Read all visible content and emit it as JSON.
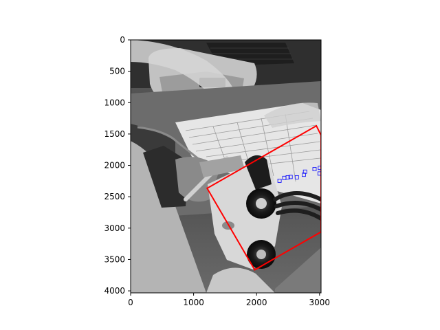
{
  "chart_data": {
    "type": "image",
    "title": "",
    "xlabel": "",
    "ylabel": "",
    "xlim": [
      0,
      3024
    ],
    "ylim": [
      4032,
      0
    ],
    "x_ticks": [
      0,
      1000,
      2000,
      3000
    ],
    "y_ticks": [
      0,
      500,
      1000,
      1500,
      2000,
      2500,
      3000,
      3500,
      4000
    ],
    "x_tick_labels": [
      "0",
      "1000",
      "2000",
      "3000"
    ],
    "y_tick_labels": [
      "0",
      "500",
      "1000",
      "1500",
      "2000",
      "2500",
      "3000",
      "3500",
      "4000"
    ],
    "background_image": "grayscale photo of a medical device with tubing and papers on a desk",
    "polygon": {
      "color": "#ff0000",
      "points": [
        [
          1215,
          2365
        ],
        [
          2950,
          1370
        ],
        [
          3024,
          1520
        ],
        [
          3024,
          3060
        ],
        [
          1970,
          3665
        ]
      ]
    },
    "markers": {
      "color": "#0000ff",
      "shape": "square-outline",
      "points": [
        [
          2365,
          2245
        ],
        [
          2440,
          2200
        ],
        [
          2495,
          2190
        ],
        [
          2540,
          2185
        ],
        [
          2640,
          2190
        ],
        [
          2750,
          2150
        ],
        [
          2770,
          2100
        ],
        [
          2920,
          2060
        ],
        [
          3000,
          2130
        ],
        [
          3005,
          2040
        ]
      ]
    }
  }
}
